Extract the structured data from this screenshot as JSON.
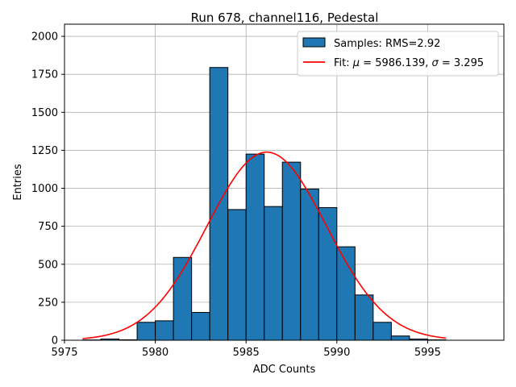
{
  "chart_data": {
    "type": "bar",
    "title": "Run 678, channel116, Pedestal",
    "xlabel": "ADC Counts",
    "ylabel": "Entries",
    "xlim": [
      5975,
      5999.2
    ],
    "ylim": [
      0,
      2080
    ],
    "xticks": [
      5975,
      5980,
      5985,
      5990,
      5995
    ],
    "yticks": [
      0,
      250,
      500,
      750,
      1000,
      1250,
      1500,
      1750,
      2000
    ],
    "grid": true,
    "legend_position": "top-right",
    "bin_width": 1,
    "bin_edges_start": 5976,
    "bins": [
      {
        "left": 5976,
        "count": 2
      },
      {
        "left": 5977,
        "count": 8
      },
      {
        "left": 5978,
        "count": 3
      },
      {
        "left": 5979,
        "count": 118
      },
      {
        "left": 5980,
        "count": 128
      },
      {
        "left": 5981,
        "count": 545
      },
      {
        "left": 5982,
        "count": 183
      },
      {
        "left": 5983,
        "count": 1795
      },
      {
        "left": 5984,
        "count": 860
      },
      {
        "left": 5985,
        "count": 1225
      },
      {
        "left": 5986,
        "count": 880
      },
      {
        "left": 5987,
        "count": 1172
      },
      {
        "left": 5988,
        "count": 995
      },
      {
        "left": 5989,
        "count": 873
      },
      {
        "left": 5990,
        "count": 615
      },
      {
        "left": 5991,
        "count": 298
      },
      {
        "left": 5992,
        "count": 118
      },
      {
        "left": 5993,
        "count": 28
      },
      {
        "left": 5994,
        "count": 8
      },
      {
        "left": 5995,
        "count": 3
      }
    ],
    "fit": {
      "type": "gaussian",
      "mu": 5986.139,
      "sigma": 3.295,
      "amplitude": 1238,
      "x_range": [
        5976,
        5996
      ]
    },
    "series": [
      {
        "name": "Samples: RMS=2.92",
        "kind": "histogram",
        "color": "#1f77b4"
      },
      {
        "name_prefix": "Fit: ",
        "name_mu_sym": "μ",
        "name_mu_text": " = 5986.139, ",
        "name_sigma_sym": "σ",
        "name_sigma_text": " = 3.295",
        "kind": "line",
        "color": "#ff0000"
      }
    ]
  }
}
